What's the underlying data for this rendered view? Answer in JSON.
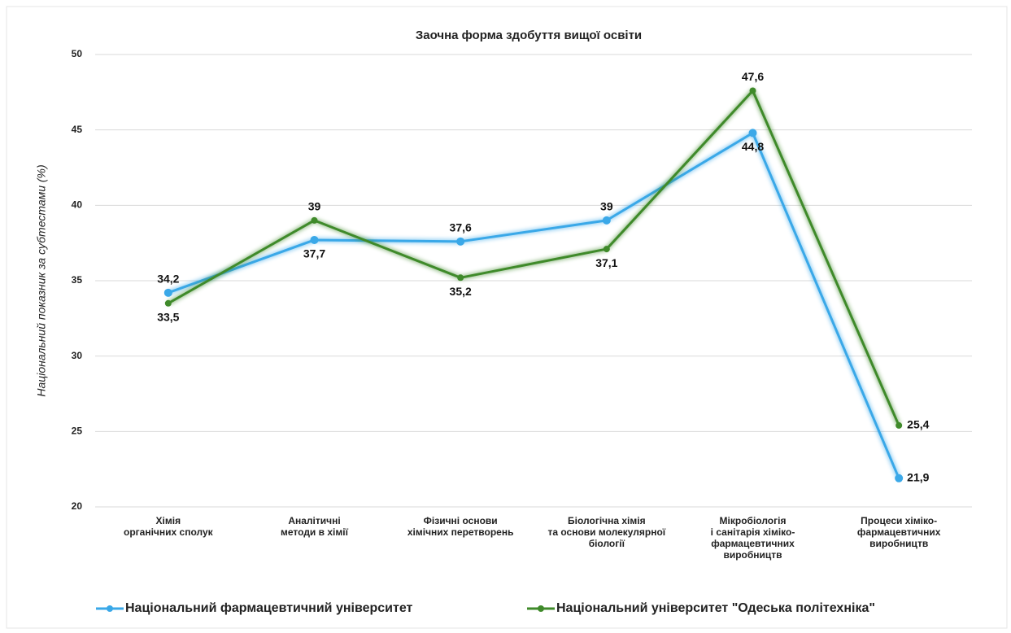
{
  "chart_data": {
    "type": "line",
    "title": "Заочна форма здобуття  вищої освіти",
    "y_label": "Національний показник за субтестами (%)",
    "categories": [
      [
        "Хімія",
        "органічних сполук"
      ],
      [
        "Аналітичні",
        "методи в хімії"
      ],
      [
        "Фізичні основи",
        "хімічних перетворень"
      ],
      [
        "Біологічна хімія",
        "та основи молекулярної",
        "біології"
      ],
      [
        "Мікробіологія",
        "і санітарія хіміко-",
        "фармацевтичних",
        "виробництв"
      ],
      [
        "Процеси хіміко-",
        "фармацевтичних",
        "виробництв"
      ]
    ],
    "series": [
      {
        "name": "Національний фармацевтичний університет",
        "color": "#3aa8e8",
        "values": [
          34.2,
          37.7,
          37.6,
          39,
          44.8,
          21.9
        ],
        "value_labels": [
          "34,2",
          "37,7",
          "37,6",
          "39",
          "44,8",
          "21,9"
        ]
      },
      {
        "name": "Національний університет \"Одеська політехніка\"",
        "color": "#3f8a2a",
        "values": [
          33.5,
          39,
          35.2,
          37.1,
          47.6,
          25.4
        ],
        "value_labels": [
          "33,5",
          "39",
          "35,2",
          "37,1",
          "47,6",
          "25,4"
        ]
      }
    ],
    "ylim": [
      20,
      50
    ],
    "yticks": [
      20,
      25,
      30,
      35,
      40,
      45,
      50
    ],
    "grid": true,
    "legend": "bottom"
  }
}
